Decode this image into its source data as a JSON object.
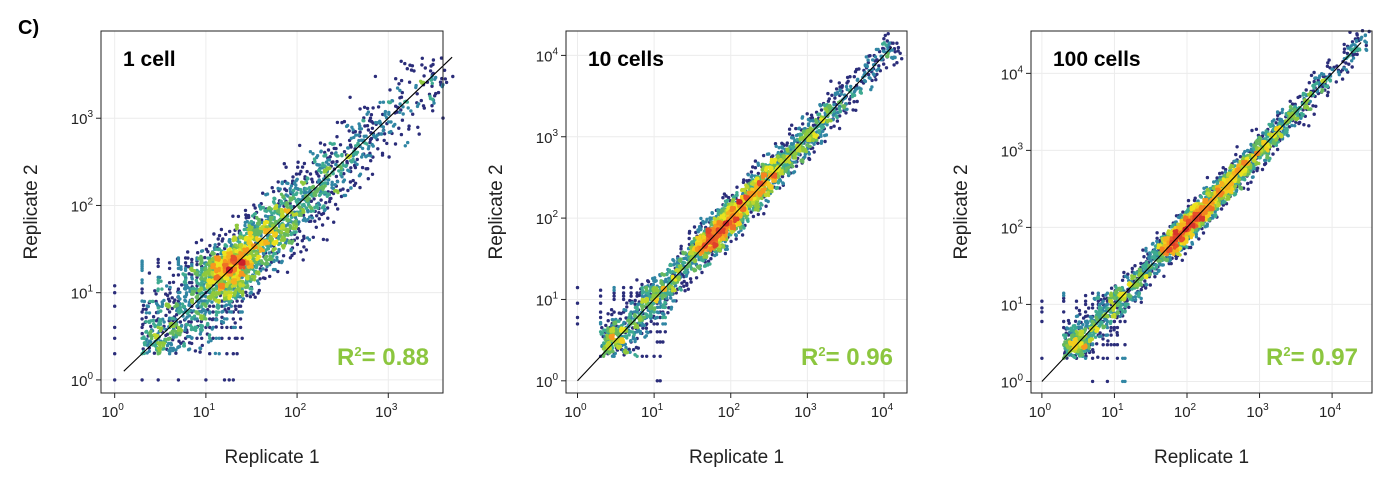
{
  "figure_label": "C)",
  "chart_data": [
    {
      "type": "scatter",
      "title": "1 cell",
      "xlabel": "Replicate 1",
      "ylabel": "Replicate 2",
      "x_scale": "log10",
      "y_scale": "log10",
      "xlim_log10": [
        -0.15,
        3.6
      ],
      "ylim_log10": [
        -0.15,
        4.0
      ],
      "x_ticks": [
        {
          "base": "10",
          "exp": "0",
          "value": 1
        },
        {
          "base": "10",
          "exp": "1",
          "value": 10
        },
        {
          "base": "10",
          "exp": "2",
          "value": 100
        },
        {
          "base": "10",
          "exp": "3",
          "value": 1000
        }
      ],
      "y_ticks": [
        {
          "base": "10",
          "exp": "0",
          "value": 1
        },
        {
          "base": "10",
          "exp": "1",
          "value": 10
        },
        {
          "base": "10",
          "exp": "2",
          "value": 100
        },
        {
          "base": "10",
          "exp": "3",
          "value": 1000
        }
      ],
      "annotation": {
        "text": "R",
        "sup": "2",
        "rest": "= 0.88",
        "r_squared": 0.88
      },
      "identity_line_log10": [
        0.1,
        3.7
      ],
      "density_profile": {
        "n": 2600,
        "spread": 0.22,
        "min_log10": 0.0,
        "max_log10": 3.5,
        "center_log10": 1.1,
        "count_levels": 25
      }
    },
    {
      "type": "scatter",
      "title": "10 cells",
      "xlabel": "Replicate 1",
      "ylabel": "Replicate 2",
      "x_scale": "log10",
      "y_scale": "log10",
      "xlim_log10": [
        -0.15,
        4.3
      ],
      "ylim_log10": [
        -0.15,
        4.3
      ],
      "x_ticks": [
        {
          "base": "10",
          "exp": "0",
          "value": 1
        },
        {
          "base": "10",
          "exp": "1",
          "value": 10
        },
        {
          "base": "10",
          "exp": "2",
          "value": 100
        },
        {
          "base": "10",
          "exp": "3",
          "value": 1000
        },
        {
          "base": "10",
          "exp": "4",
          "value": 10000
        }
      ],
      "y_ticks": [
        {
          "base": "10",
          "exp": "0",
          "value": 1
        },
        {
          "base": "10",
          "exp": "1",
          "value": 10
        },
        {
          "base": "10",
          "exp": "2",
          "value": 100
        },
        {
          "base": "10",
          "exp": "3",
          "value": 1000
        },
        {
          "base": "10",
          "exp": "4",
          "value": 10000
        }
      ],
      "annotation": {
        "text": "R",
        "sup": "2",
        "rest": "= 0.96",
        "r_squared": 0.96
      },
      "identity_line_log10": [
        0.0,
        4.1
      ],
      "density_profile": {
        "n": 3000,
        "spread": 0.13,
        "min_log10": 0.0,
        "max_log10": 4.1,
        "center_log10": 1.6,
        "count_levels": 14
      }
    },
    {
      "type": "scatter",
      "title": "100 cells",
      "xlabel": "Replicate 1",
      "ylabel": "Replicate 2",
      "x_scale": "log10",
      "y_scale": "log10",
      "xlim_log10": [
        -0.15,
        4.55
      ],
      "ylim_log10": [
        -0.15,
        4.55
      ],
      "x_ticks": [
        {
          "base": "10",
          "exp": "0",
          "value": 1
        },
        {
          "base": "10",
          "exp": "1",
          "value": 10
        },
        {
          "base": "10",
          "exp": "2",
          "value": 100
        },
        {
          "base": "10",
          "exp": "3",
          "value": 1000
        },
        {
          "base": "10",
          "exp": "4",
          "value": 10000
        }
      ],
      "y_ticks": [
        {
          "base": "10",
          "exp": "0",
          "value": 1
        },
        {
          "base": "10",
          "exp": "1",
          "value": 10
        },
        {
          "base": "10",
          "exp": "2",
          "value": 100
        },
        {
          "base": "10",
          "exp": "3",
          "value": 1000
        },
        {
          "base": "10",
          "exp": "4",
          "value": 10000
        }
      ],
      "annotation": {
        "text": "R",
        "sup": "2",
        "rest": "= 0.97",
        "r_squared": 0.97
      },
      "identity_line_log10": [
        0.0,
        4.4
      ],
      "density_profile": {
        "n": 3000,
        "spread": 0.11,
        "min_log10": 0.0,
        "max_log10": 4.4,
        "center_log10": 1.7,
        "count_levels": 14
      }
    }
  ],
  "colors": {
    "low_density": "#2b2d7a",
    "colormap": [
      "#2b2d7a",
      "#2f6aa8",
      "#33a6a0",
      "#7cc242",
      "#f1e51c",
      "#f7931e",
      "#e8502b",
      "#c9202b"
    ],
    "r2": "#8cc63f",
    "grid": "#ececec"
  }
}
